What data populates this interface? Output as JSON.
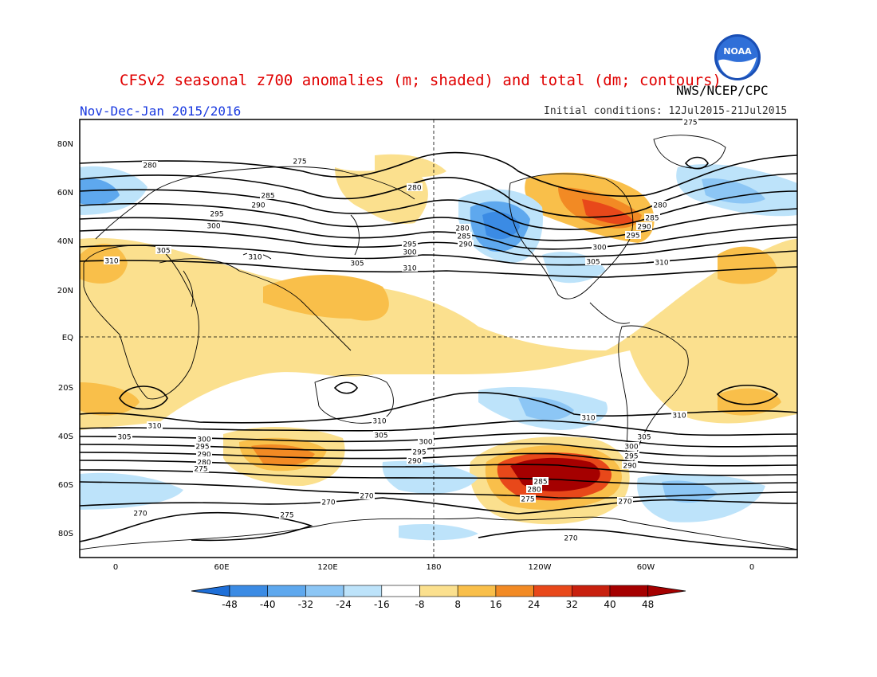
{
  "title": "CFSv2 seasonal z700 anomalies (m; shaded) and total (dm; contours)",
  "season": "Nov-Dec-Jan 2015/2016",
  "agency": "NWS/NCEP/CPC",
  "initial_conditions": "Initial conditions: 12Jul2015-21Jul2015",
  "logo_text": "NOAA",
  "lat_ticks": [
    "80N",
    "60N",
    "40N",
    "20N",
    "EQ",
    "20S",
    "40S",
    "60S",
    "80S"
  ],
  "lon_ticks": [
    "0",
    "60E",
    "120E",
    "180",
    "120W",
    "60W",
    "0"
  ],
  "colorbar": {
    "labels": [
      "-48",
      "-40",
      "-32",
      "-24",
      "-16",
      "-8",
      "8",
      "16",
      "24",
      "32",
      "40",
      "48"
    ],
    "colors": [
      "#1e6fd8",
      "#3b8be4",
      "#5ea8ee",
      "#8cc6f5",
      "#bde3fa",
      "#ffffff",
      "#fbe08e",
      "#f9bf4a",
      "#f28a24",
      "#e8481a",
      "#c8200e",
      "#a50000"
    ]
  },
  "contour_labels": [
    {
      "id": "c1",
      "text": "280"
    },
    {
      "id": "c2",
      "text": "275"
    },
    {
      "id": "c3",
      "text": "285"
    },
    {
      "id": "c4",
      "text": "290"
    },
    {
      "id": "c5",
      "text": "295"
    },
    {
      "id": "c6",
      "text": "300"
    },
    {
      "id": "c7",
      "text": "305"
    },
    {
      "id": "c8",
      "text": "310"
    },
    {
      "id": "c9",
      "text": "310"
    },
    {
      "id": "c10",
      "text": "280"
    },
    {
      "id": "c11",
      "text": "295"
    },
    {
      "id": "c12",
      "text": "300"
    },
    {
      "id": "c13",
      "text": "305"
    },
    {
      "id": "c14",
      "text": "310"
    },
    {
      "id": "c15",
      "text": "280"
    },
    {
      "id": "c16",
      "text": "285"
    },
    {
      "id": "c17",
      "text": "290"
    },
    {
      "id": "c18",
      "text": "280"
    },
    {
      "id": "c19",
      "text": "285"
    },
    {
      "id": "c20",
      "text": "290"
    },
    {
      "id": "c21",
      "text": "295"
    },
    {
      "id": "c22",
      "text": "300"
    },
    {
      "id": "c23",
      "text": "305"
    },
    {
      "id": "c24",
      "text": "310"
    },
    {
      "id": "c25",
      "text": "310"
    },
    {
      "id": "c26",
      "text": "305"
    },
    {
      "id": "c27",
      "text": "300"
    },
    {
      "id": "c28",
      "text": "295"
    },
    {
      "id": "c29",
      "text": "290"
    },
    {
      "id": "c30",
      "text": "285"
    },
    {
      "id": "c31",
      "text": "280"
    },
    {
      "id": "c32",
      "text": "275"
    },
    {
      "id": "c33",
      "text": "310"
    },
    {
      "id": "c34",
      "text": "305"
    },
    {
      "id": "c35",
      "text": "300"
    },
    {
      "id": "c36",
      "text": "295"
    },
    {
      "id": "c37",
      "text": "290"
    },
    {
      "id": "c38",
      "text": "285"
    },
    {
      "id": "c39",
      "text": "280"
    },
    {
      "id": "c40",
      "text": "275"
    },
    {
      "id": "c41",
      "text": "270"
    },
    {
      "id": "c42",
      "text": "270"
    },
    {
      "id": "c43",
      "text": "275"
    },
    {
      "id": "c44",
      "text": "270"
    },
    {
      "id": "c45",
      "text": "270"
    },
    {
      "id": "c46",
      "text": "270"
    },
    {
      "id": "c47",
      "text": "310"
    },
    {
      "id": "c48",
      "text": "300"
    },
    {
      "id": "c49",
      "text": "295"
    },
    {
      "id": "c50",
      "text": "290"
    },
    {
      "id": "c51",
      "text": "305"
    },
    {
      "id": "c52",
      "text": "310"
    },
    {
      "id": "c53",
      "text": "275"
    }
  ]
}
